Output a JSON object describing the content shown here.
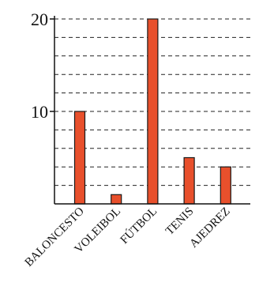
{
  "chart_data": {
    "type": "bar",
    "categories": [
      "BALONCESTO",
      "VOLEIBOL",
      "FÚTBOL",
      "TENIS",
      "AJEDREZ"
    ],
    "values": [
      10,
      1,
      20,
      5,
      4
    ],
    "ylim": [
      0,
      20
    ],
    "y_tick_labels": [
      "10",
      "20"
    ],
    "y_tick_values": [
      10,
      20
    ],
    "grid": true,
    "grid_step": 2,
    "bar_color": "#e8502c",
    "bar_outline": "#1a1a1a",
    "title": "",
    "xlabel": "",
    "ylabel": ""
  }
}
